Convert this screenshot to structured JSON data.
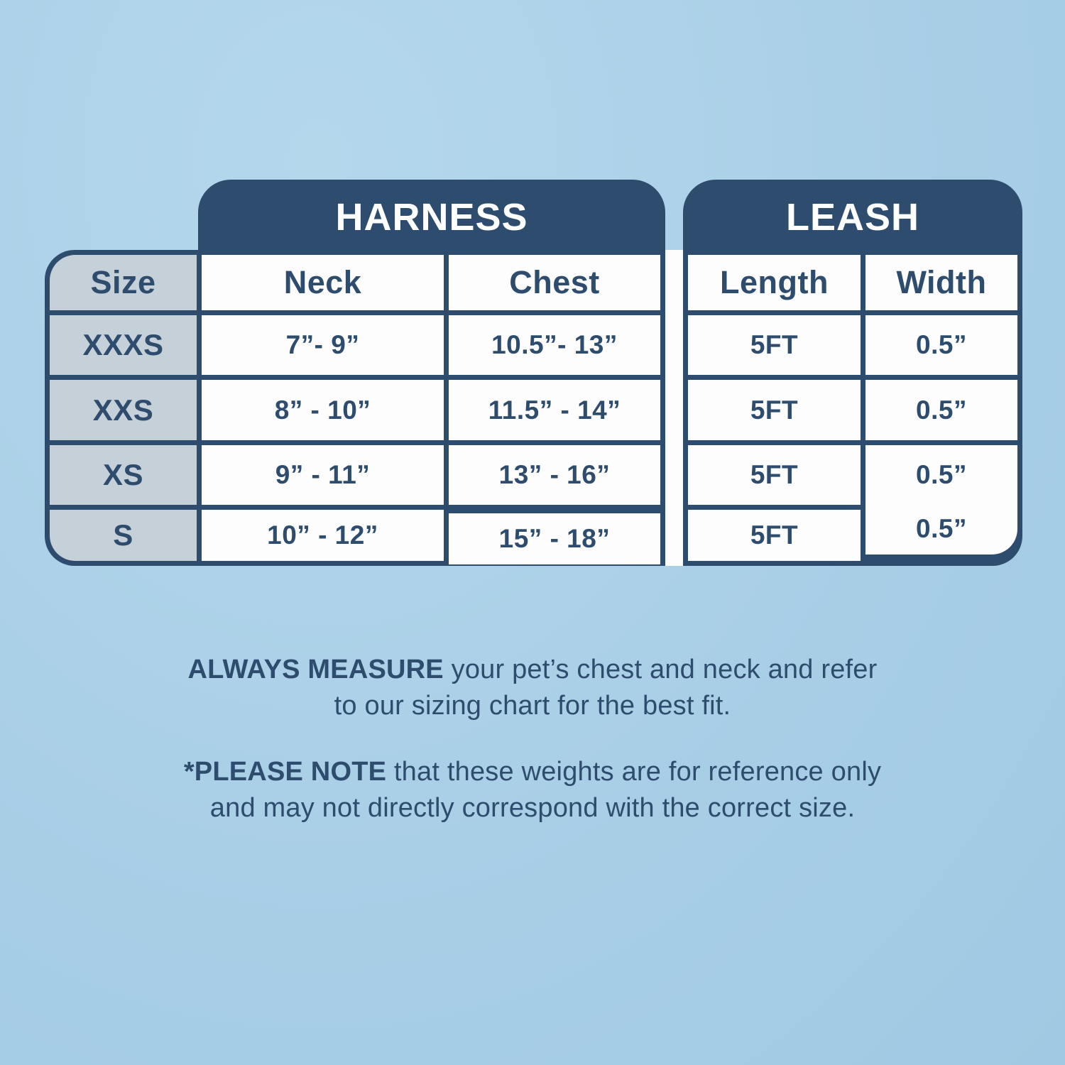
{
  "colors": {
    "background": "#a9cfe7",
    "navy": "#2e4d6e",
    "size_column_bg": "#c6d0d8",
    "cell_bg": "#fdfdfd",
    "tab_text": "#ffffff"
  },
  "chart_data": {
    "type": "table",
    "group_headers": [
      {
        "label": "HARNESS",
        "spans": [
          "Neck",
          "Chest"
        ]
      },
      {
        "label": "LEASH",
        "spans": [
          "Length",
          "Width"
        ]
      }
    ],
    "columns": [
      "Size",
      "Neck",
      "Chest",
      "Length",
      "Width"
    ],
    "rows": [
      {
        "size": "XXXS",
        "neck": "7”- 9”",
        "chest": "10.5”- 13”",
        "length": "5FT",
        "width": "0.5”"
      },
      {
        "size": "XXS",
        "neck": "8” - 10”",
        "chest": "11.5” - 14”",
        "length": "5FT",
        "width": "0.5”"
      },
      {
        "size": "XS",
        "neck": "9” - 11”",
        "chest": "13” - 16”",
        "length": "5FT",
        "width": "0.5”"
      },
      {
        "size": "S",
        "neck": "10” - 12”",
        "chest": "15” - 18”",
        "length": "5FT",
        "width": "0.5”"
      }
    ]
  },
  "notes": {
    "measure": {
      "bold": "ALWAYS MEASURE",
      "line1_rest": " your pet’s chest and neck and refer",
      "line2": "to our sizing chart for the best fit."
    },
    "disclaimer": {
      "bold": "*PLEASE NOTE",
      "line1_rest": " that these weights are for reference only",
      "line2": "and may not directly correspond with the correct size."
    }
  }
}
